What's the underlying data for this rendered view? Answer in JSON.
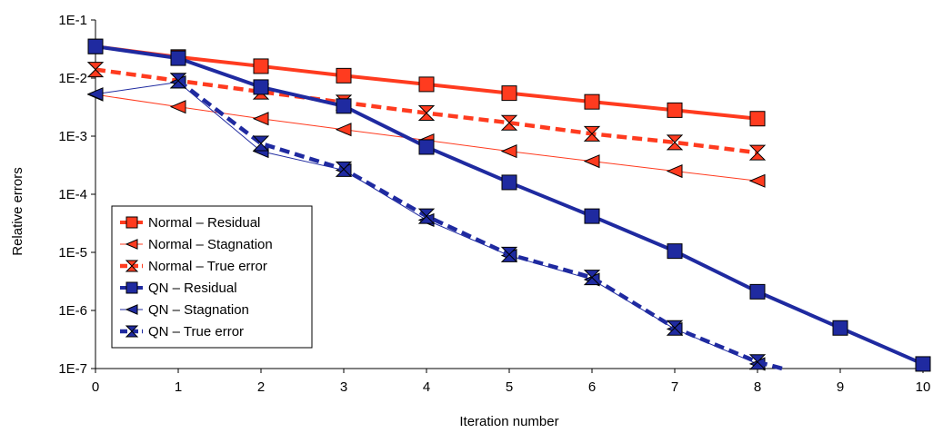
{
  "chart_data": {
    "type": "line",
    "xlabel": "Iteration number",
    "ylabel": "Relative errors",
    "xlim": [
      0,
      10
    ],
    "ylim": [
      1e-07,
      0.1
    ],
    "yscale": "log",
    "x_ticks": [
      "0",
      "1",
      "2",
      "3",
      "4",
      "5",
      "6",
      "7",
      "8",
      "9",
      "10"
    ],
    "y_ticks": [
      {
        "value": 0.1,
        "label": "1E-1"
      },
      {
        "value": 0.01,
        "label": "1E-2"
      },
      {
        "value": 0.001,
        "label": "1E-3"
      },
      {
        "value": 0.0001,
        "label": "1E-4"
      },
      {
        "value": 1e-05,
        "label": "1E-5"
      },
      {
        "value": 1e-06,
        "label": "1E-6"
      },
      {
        "value": 1e-07,
        "label": "1E-7"
      }
    ],
    "grid": false,
    "legend_position": "bottom-left",
    "series": [
      {
        "name": "Normal – Residual",
        "color": "#ff3b1f",
        "style": "solid-thick",
        "marker": "square",
        "x": [
          0,
          1,
          2,
          3,
          4,
          5,
          6,
          7,
          8
        ],
        "y": [
          0.035,
          0.023,
          0.016,
          0.011,
          0.0078,
          0.0055,
          0.0039,
          0.0028,
          0.002
        ]
      },
      {
        "name": "Normal – Stagnation",
        "color": "#ff3b1f",
        "style": "solid-thin",
        "marker": "triangle-left",
        "x": [
          0,
          1,
          2,
          3,
          4,
          5,
          6,
          7,
          8
        ],
        "y": [
          0.0052,
          0.0032,
          0.002,
          0.0013,
          0.00085,
          0.00055,
          0.00037,
          0.00025,
          0.00017
        ]
      },
      {
        "name": "Normal – True error",
        "color": "#ff3b1f",
        "style": "dashed-thick",
        "marker": "hourglass",
        "x": [
          0,
          1,
          2,
          3,
          4,
          5,
          6,
          7,
          8
        ],
        "y": [
          0.014,
          0.009,
          0.0058,
          0.0038,
          0.0025,
          0.0017,
          0.0011,
          0.00078,
          0.00052
        ]
      },
      {
        "name": "QN – Residual",
        "color": "#1f2aa0",
        "style": "solid-thick",
        "marker": "square",
        "x": [
          0,
          1,
          2,
          3,
          4,
          5,
          6,
          7,
          8,
          9,
          10
        ],
        "y": [
          0.035,
          0.022,
          0.007,
          0.0033,
          0.00065,
          0.00016,
          4.2e-05,
          1.05e-05,
          2.1e-06,
          5e-07,
          1.2e-07
        ]
      },
      {
        "name": "QN – Stagnation",
        "color": "#1f2aa0",
        "style": "solid-thin",
        "marker": "triangle-left",
        "x": [
          0,
          1,
          2,
          3,
          4,
          5,
          6,
          7,
          8
        ],
        "y": [
          0.0053,
          0.0085,
          0.00055,
          0.00026,
          3.6e-05,
          8.8e-06,
          3.4e-06,
          4.8e-07,
          1.2e-07
        ]
      },
      {
        "name": "QN – True error",
        "color": "#1f2aa0",
        "style": "dashed-thick",
        "marker": "hourglass",
        "x": [
          1,
          2,
          3,
          4,
          5,
          6,
          7,
          8,
          8.3
        ],
        "y": [
          0.009,
          0.00075,
          0.00027,
          4.2e-05,
          9.2e-06,
          3.7e-06,
          5e-07,
          1.3e-07,
          1e-07
        ]
      }
    ]
  }
}
